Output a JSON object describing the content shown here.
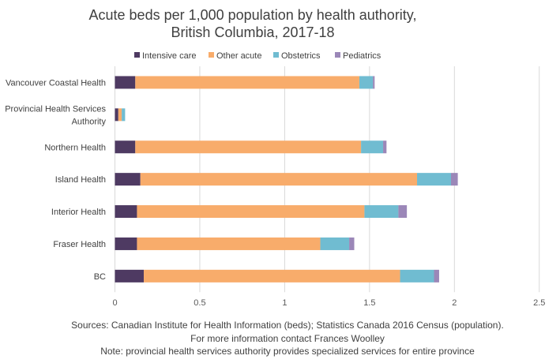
{
  "chart_data": {
    "type": "bar",
    "orientation": "horizontal",
    "stacked": true,
    "title": [
      "Acute beds per 1,000 population by health authority,",
      "British Columbia, 2017-18"
    ],
    "categories": [
      "Vancouver Coastal Health",
      "Provincial Health Services Authority",
      "Northern Health",
      "Island Health",
      "Interior Health",
      "Fraser Health",
      "BC"
    ],
    "series": [
      {
        "name": "Intensive care",
        "color": "#4e3a62",
        "values": [
          0.12,
          0.02,
          0.12,
          0.15,
          0.13,
          0.13,
          0.17
        ]
      },
      {
        "name": "Other acute",
        "color": "#f8ac6b",
        "values": [
          1.32,
          0.02,
          1.33,
          1.63,
          1.34,
          1.08,
          1.51
        ]
      },
      {
        "name": "Obstetrics",
        "color": "#70bcd1",
        "values": [
          0.08,
          0.02,
          0.13,
          0.2,
          0.2,
          0.17,
          0.2
        ]
      },
      {
        "name": "Pediatrics",
        "color": "#9b87b8",
        "values": [
          0.01,
          0,
          0.02,
          0.04,
          0.05,
          0.03,
          0.03
        ]
      }
    ],
    "xlim": [
      0,
      2.5
    ],
    "xticks": [
      "0",
      "0.5",
      "1",
      "1.5",
      "2",
      "2.5"
    ],
    "grid": true,
    "legend": "top",
    "notes": [
      "Sources: Canadian Institute for Health Information (beds); Statistics Canada 2016 Census (population).",
      "For more information contact Frances Woolley",
      "Note: provincial health services authority provides specialized services for entire province"
    ]
  }
}
